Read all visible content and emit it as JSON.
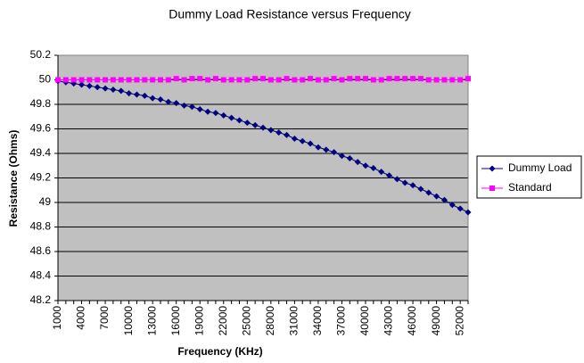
{
  "chart_data": {
    "type": "line",
    "title": "Dummy Load Resistance versus Frequency",
    "x_label": "Frequency (KHz)",
    "y_label": "Resistance (Ohms)",
    "categories": [
      1000,
      null,
      null,
      4000,
      null,
      null,
      7000,
      null,
      null,
      10000,
      null,
      null,
      13000,
      null,
      null,
      16000,
      null,
      null,
      19000,
      null,
      null,
      22000,
      null,
      null,
      25000,
      null,
      null,
      28000,
      null,
      null,
      31000,
      null,
      null,
      34000,
      null,
      null,
      37000,
      null,
      null,
      40000,
      null,
      null,
      43000,
      null,
      null,
      46000,
      null,
      null,
      49000,
      null,
      null,
      52000,
      null
    ],
    "series": [
      {
        "name": "Dummy Load",
        "color": "#000080",
        "marker": "diamond",
        "values": [
          49.99,
          49.98,
          49.97,
          49.96,
          49.95,
          49.94,
          49.93,
          49.92,
          49.91,
          49.89,
          49.88,
          49.87,
          49.85,
          49.84,
          49.82,
          49.81,
          49.79,
          49.78,
          49.76,
          49.74,
          49.73,
          49.71,
          49.69,
          49.67,
          49.65,
          49.63,
          49.61,
          49.59,
          49.57,
          49.55,
          49.52,
          49.5,
          49.48,
          49.45,
          49.43,
          49.41,
          49.38,
          49.36,
          49.33,
          49.3,
          49.28,
          49.25,
          49.22,
          49.19,
          49.16,
          49.14,
          49.11,
          49.08,
          49.05,
          49.02,
          48.98,
          48.95,
          48.92
        ]
      },
      {
        "name": "Standard",
        "color": "#ff00ff",
        "marker": "square",
        "values": [
          50,
          50,
          50,
          50,
          50,
          50,
          50,
          50,
          50,
          50,
          50,
          50,
          50,
          50,
          50,
          50.01,
          50,
          50.01,
          50.01,
          50,
          50.01,
          50,
          50,
          50,
          50,
          50.01,
          50.01,
          50,
          50,
          50.01,
          50,
          50,
          50.01,
          50,
          50,
          50.01,
          50,
          50.01,
          50.01,
          50.01,
          50,
          50,
          50.01,
          50.01,
          50.01,
          50.01,
          50.01,
          50,
          50,
          50,
          50,
          50,
          50.01
        ]
      }
    ],
    "ylim": [
      48.2,
      50.2
    ],
    "yticks": [
      48.2,
      48.4,
      48.6,
      48.8,
      49,
      49.2,
      49.4,
      49.6,
      49.8,
      50,
      50.2
    ],
    "grid": true,
    "legend": "right"
  }
}
